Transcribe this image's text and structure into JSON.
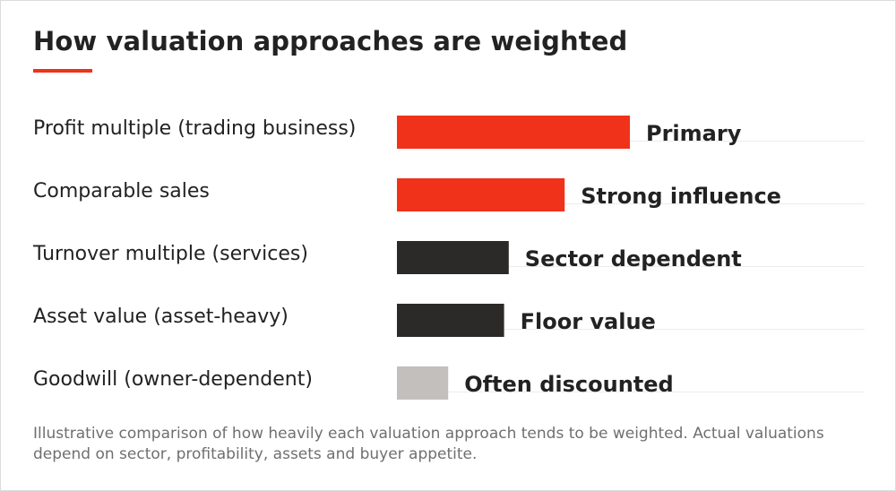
{
  "title": "How valuation approaches are weighted",
  "note": "Illustrative comparison of how heavily each valuation approach tends to be weighted. Actual valuations depend on sector, profitability, assets and buyer appetite.",
  "colors": {
    "accent": "#f0321a",
    "dark": "#2b2a28",
    "light": "#c3bfbc",
    "rule": "#ececec"
  },
  "chart_data": {
    "type": "bar",
    "orientation": "horizontal",
    "xlim": [
      0,
      100
    ],
    "grid": false,
    "legend": "none",
    "categories": [
      "Profit multiple (trading business)",
      "Comparable sales",
      "Turnover multiple (services)",
      "Asset value (asset-heavy)",
      "Goodwill (owner-dependent)"
    ],
    "values": [
      50,
      36,
      24,
      23,
      11
    ],
    "value_labels": [
      "Primary",
      "Strong influence",
      "Sector dependent",
      "Floor value",
      "Often discounted"
    ],
    "bar_colors": [
      "#f0321a",
      "#f0321a",
      "#2b2a28",
      "#2b2a28",
      "#c3bfbc"
    ]
  }
}
